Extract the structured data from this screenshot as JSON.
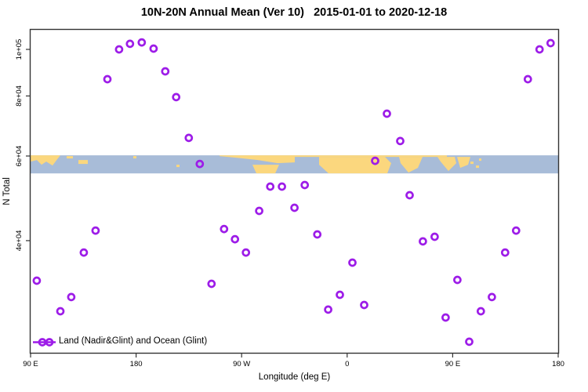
{
  "title": "10N-20N Annual Mean (Ver 10)   2015-01-01 to 2020-12-18",
  "legend": {
    "label": "Land (Nadir&Glint) and Ocean (Glint)"
  },
  "colors": {
    "marker": "#9D1CE8",
    "ocean": "#A8BCD8",
    "land": "#FBD77E",
    "axis": "#333333",
    "text": "#000000"
  },
  "chart_data": {
    "type": "scatter",
    "title": "10N-20N Annual Mean (Ver 10)   2015-01-01 to 2020-12-18",
    "xlabel": "Longitude (deg E)",
    "ylabel": "N Total",
    "x_axis": {
      "min": 90,
      "max": 540,
      "ticks": [
        {
          "deg": 90,
          "label": "90 E"
        },
        {
          "deg": 180,
          "label": "180"
        },
        {
          "deg": 270,
          "label": "90 W"
        },
        {
          "deg": 360,
          "label": "0"
        },
        {
          "deg": 450,
          "label": "90 E"
        },
        {
          "deg": 540,
          "label": "180"
        }
      ]
    },
    "y_axis": {
      "scale": "log10",
      "min": 23000,
      "max": 110000,
      "ticks": [
        {
          "value": 100000,
          "label": "1e+05"
        },
        {
          "value": 80000,
          "label": "8e+04"
        },
        {
          "value": 60000,
          "label": "6e+04"
        },
        {
          "value": 40000,
          "label": "4e+04"
        }
      ]
    },
    "series": [
      {
        "name": "Land (Nadir&Glint) and Ocean (Glint)",
        "marker": "open-circle",
        "points": [
          {
            "x": 95.3,
            "y": 33020
          },
          {
            "x": 115.4,
            "y": 28520
          },
          {
            "x": 124.7,
            "y": 30520
          },
          {
            "x": 135.4,
            "y": 37790
          },
          {
            "x": 145.4,
            "y": 41980
          },
          {
            "x": 155.5,
            "y": 86700
          },
          {
            "x": 165.5,
            "y": 100000
          },
          {
            "x": 174.8,
            "y": 102700
          },
          {
            "x": 184.8,
            "y": 103400
          },
          {
            "x": 194.9,
            "y": 100380
          },
          {
            "x": 204.9,
            "y": 90020
          },
          {
            "x": 214.2,
            "y": 79540
          },
          {
            "x": 224.9,
            "y": 65430
          },
          {
            "x": 234.3,
            "y": 57770
          },
          {
            "x": 244.3,
            "y": 32530
          },
          {
            "x": 255.0,
            "y": 42300
          },
          {
            "x": 264.3,
            "y": 40280
          },
          {
            "x": 273.7,
            "y": 37790
          },
          {
            "x": 285.0,
            "y": 46120
          },
          {
            "x": 294.4,
            "y": 51830
          },
          {
            "x": 304.4,
            "y": 51830
          },
          {
            "x": 315.1,
            "y": 46820
          },
          {
            "x": 323.8,
            "y": 52220
          },
          {
            "x": 334.5,
            "y": 41210
          },
          {
            "x": 343.8,
            "y": 28740
          },
          {
            "x": 353.8,
            "y": 30860
          },
          {
            "x": 364.5,
            "y": 36000
          },
          {
            "x": 374.5,
            "y": 29390
          },
          {
            "x": 383.9,
            "y": 58650
          },
          {
            "x": 393.9,
            "y": 73500
          },
          {
            "x": 405.3,
            "y": 64450
          },
          {
            "x": 413.3,
            "y": 49730
          },
          {
            "x": 424.6,
            "y": 39850
          },
          {
            "x": 434.6,
            "y": 40750
          },
          {
            "x": 444.0,
            "y": 27670
          },
          {
            "x": 454.0,
            "y": 33140
          },
          {
            "x": 464.1,
            "y": 24640
          },
          {
            "x": 474.0,
            "y": 28520
          },
          {
            "x": 483.4,
            "y": 30520
          },
          {
            "x": 494.7,
            "y": 37790
          },
          {
            "x": 504.1,
            "y": 41980
          },
          {
            "x": 514.1,
            "y": 86700
          },
          {
            "x": 524.1,
            "y": 100000
          },
          {
            "x": 533.5,
            "y": 103040
          }
        ]
      }
    ],
    "map_band": {
      "top_value": 60200,
      "bottom_value": 55200,
      "land_shapes": [
        "0,0 38,0 34,5 28,13 20,8 14,12 8,6 0,8",
        "46,1 54,1 54,4 46,4",
        "61,6 73,6 73,11 61,11",
        "131,1 135,1 135,4 131,4",
        "186,12 190,12 190,15 186,15",
        "241,0 337,0 337,9 315,10 290,6 262,3 241,1",
        "331,0 531,0 531,2 331,2",
        "283,12 317,12 312,23 288,23",
        "368,2 452,2 460,10 455,23 380,23 368,12",
        "470,2 500,2 494,16 482,22 472,10",
        "519,2 541,2 543,10 533,20 523,8",
        "544,2 561,2 558,12 548,16",
        "561,8 565,8 565,11 561,11",
        "568,13 572,13 572,16 568,16",
        "572,4 575,4 575,7 572,7"
      ]
    }
  }
}
